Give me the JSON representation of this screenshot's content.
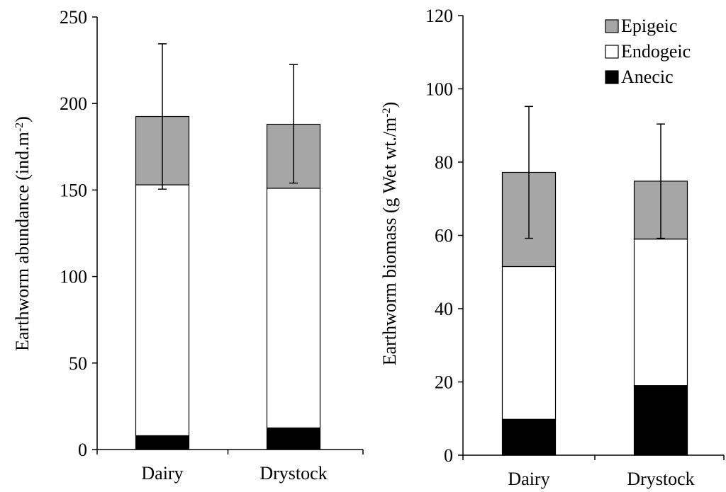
{
  "chart_data": [
    {
      "type": "bar",
      "stacked": true,
      "categories": [
        "Dairy",
        "Drystock"
      ],
      "ylabel": "Earthworm abundance (ind.m",
      "ylabel_sup": "-2",
      "ylabel_end": ")",
      "ylim": [
        0,
        250
      ],
      "yticks": [
        "0",
        "50",
        "100",
        "150",
        "200",
        "250"
      ],
      "series": [
        {
          "name": "Anecic",
          "color": "#000000",
          "values": [
            8,
            12.5
          ]
        },
        {
          "name": "Endogeic",
          "color": "#ffffff",
          "values": [
            145,
            138.5
          ]
        },
        {
          "name": "Epigeic",
          "color": "#a6a6a6",
          "values": [
            39.5,
            37
          ]
        }
      ],
      "error_bars": {
        "center": [
          192.5,
          188
        ],
        "minus": [
          42,
          34
        ],
        "plus": [
          42,
          34.5
        ]
      }
    },
    {
      "type": "bar",
      "stacked": true,
      "categories": [
        "Dairy",
        "Drystock"
      ],
      "ylabel": "Earthworm biomass (g Wet wt./m",
      "ylabel_sup": "-2",
      "ylabel_end": ")",
      "ylim": [
        0,
        120
      ],
      "yticks": [
        "0",
        "20",
        "40",
        "60",
        "80",
        "100",
        "120"
      ],
      "legend_position": "top-right",
      "series": [
        {
          "name": "Anecic",
          "color": "#000000",
          "values": [
            9.8,
            19
          ]
        },
        {
          "name": "Endogeic",
          "color": "#ffffff",
          "values": [
            41.7,
            40
          ]
        },
        {
          "name": "Epigeic",
          "color": "#a6a6a6",
          "values": [
            25.7,
            15.8
          ]
        }
      ],
      "error_bars": {
        "center": [
          77.2,
          74.8
        ],
        "minus": [
          18,
          15.6
        ],
        "plus": [
          18,
          15.6
        ]
      },
      "legend": [
        "Epigeic",
        "Endogeic",
        "Anecic"
      ]
    }
  ]
}
